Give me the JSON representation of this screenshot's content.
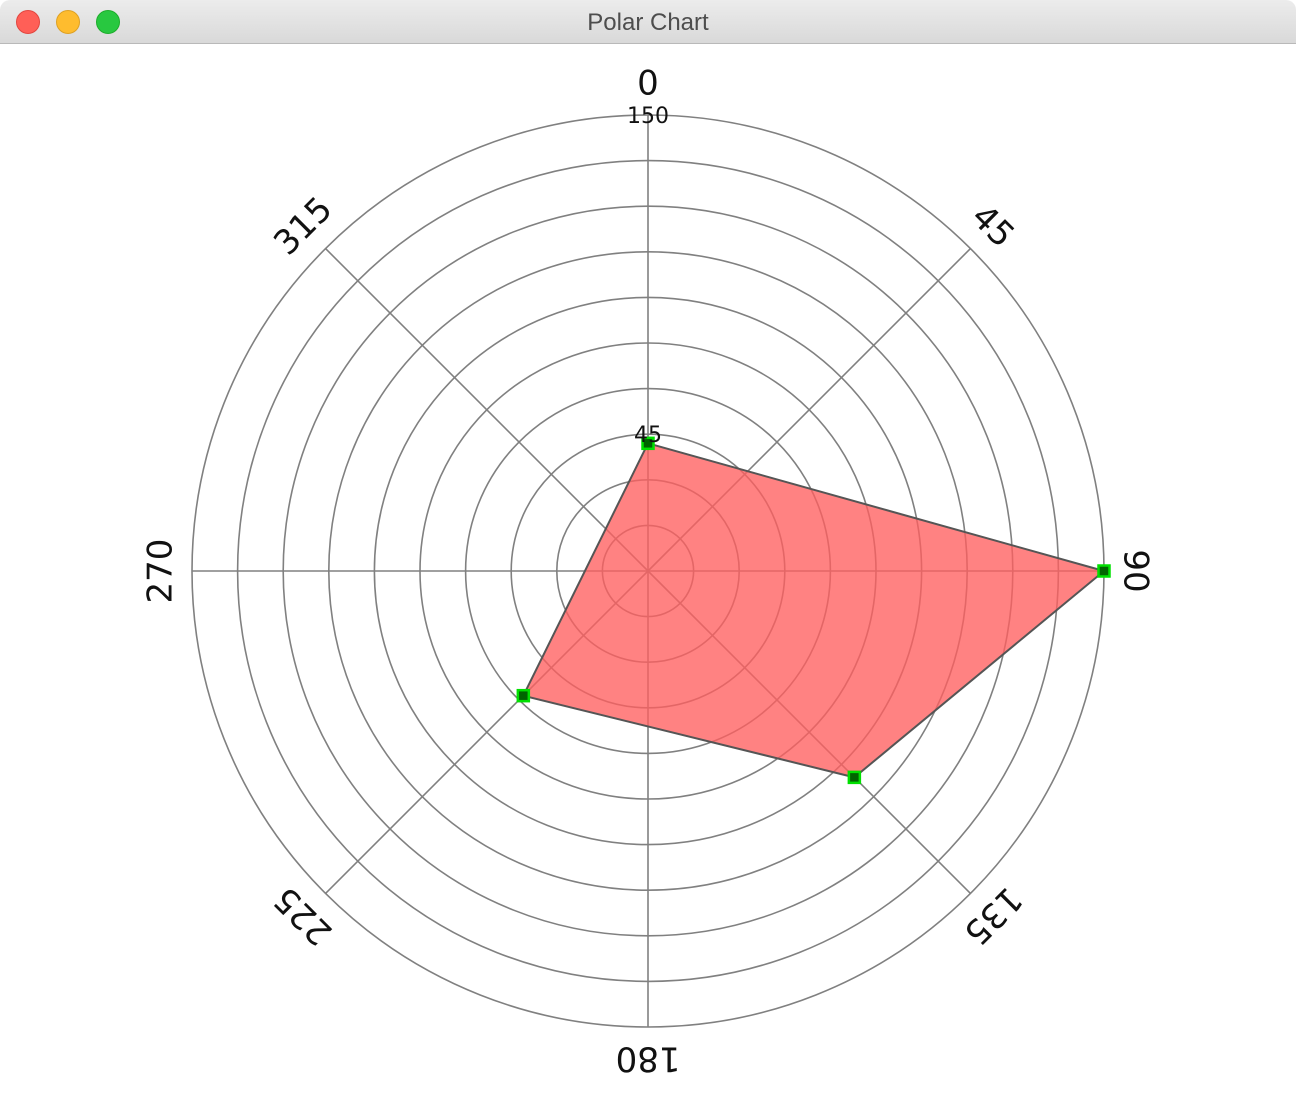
{
  "window": {
    "title": "Polar Chart"
  },
  "colors": {
    "fill": "#ff5f5f",
    "stroke": "#555555",
    "marker_fill": "#006400",
    "marker_edge": "#00e000",
    "grid": "#808080"
  },
  "chart_data": {
    "type": "polar",
    "radial_axis": {
      "range": [
        0,
        150
      ],
      "ring_step": 15,
      "tick_labels": [
        "45",
        "150"
      ]
    },
    "angular_axis": {
      "tick_labels": [
        "0",
        "45",
        "90",
        "135",
        "180",
        "225",
        "270",
        "315"
      ],
      "direction": "clockwise",
      "zero": "top"
    },
    "grid": true,
    "series": [
      {
        "points": [
          {
            "angle": 0,
            "r": 42
          },
          {
            "angle": 90,
            "r": 150
          },
          {
            "angle": 135,
            "r": 96
          },
          {
            "angle": 225,
            "r": 58
          }
        ]
      }
    ]
  }
}
